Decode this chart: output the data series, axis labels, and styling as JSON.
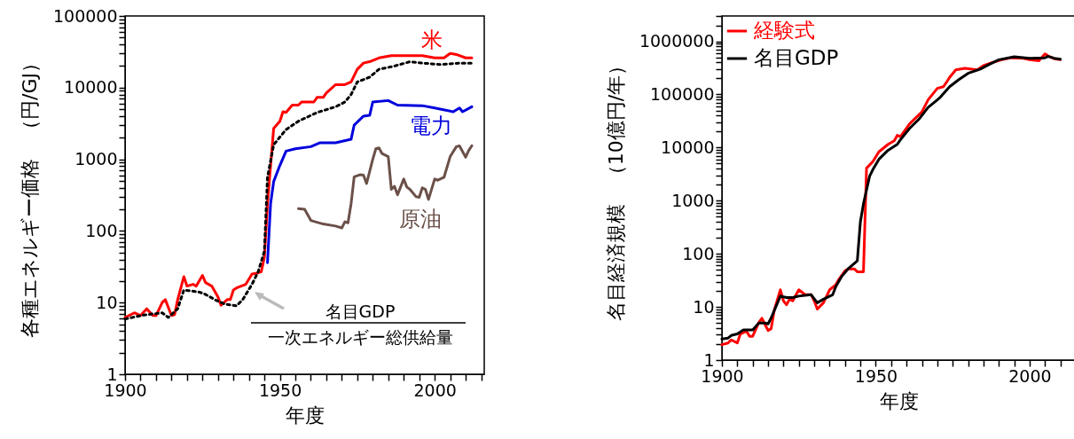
{
  "chart_data": [
    {
      "type": "line",
      "xlabel": "年度",
      "ylabel": "各種エネルギー価格　（円/GJ）",
      "log": "y",
      "legend": false,
      "grid": false,
      "marker": "none",
      "xlim": [
        1900,
        2016
      ],
      "ylim": [
        1,
        100000
      ],
      "xticks": [
        1900,
        {
          "value": 1905,
          "label": null
        },
        {
          "value": 1910,
          "label": null
        },
        {
          "value": 1915,
          "label": null
        },
        {
          "value": 1920,
          "label": null
        },
        {
          "value": 1925,
          "label": null
        },
        {
          "value": 1930,
          "label": null
        },
        {
          "value": 1935,
          "label": null
        },
        {
          "value": 1940,
          "label": null
        },
        {
          "value": 1945,
          "label": null
        },
        1950,
        {
          "value": 1955,
          "label": null
        },
        {
          "value": 1960,
          "label": null
        },
        {
          "value": 1965,
          "label": null
        },
        {
          "value": 1970,
          "label": null
        },
        {
          "value": 1975,
          "label": null
        },
        {
          "value": 1980,
          "label": null
        },
        {
          "value": 1985,
          "label": null
        },
        {
          "value": 1990,
          "label": null
        },
        {
          "value": 1995,
          "label": null
        },
        2000,
        {
          "value": 2005,
          "label": null
        },
        {
          "value": 2010,
          "label": null
        },
        {
          "value": 2015,
          "label": null
        }
      ],
      "yticks": [
        1,
        {
          "value": 2,
          "label": null
        },
        {
          "value": 3,
          "label": null
        },
        {
          "value": 4,
          "label": null
        },
        {
          "value": 5,
          "label": null
        },
        {
          "value": 6,
          "label": null
        },
        {
          "value": 7,
          "label": null
        },
        {
          "value": 8,
          "label": null
        },
        {
          "value": 9,
          "label": null
        },
        10,
        {
          "value": 20,
          "label": null
        },
        {
          "value": 30,
          "label": null
        },
        {
          "value": 40,
          "label": null
        },
        {
          "value": 50,
          "label": null
        },
        {
          "value": 60,
          "label": null
        },
        {
          "value": 70,
          "label": null
        },
        {
          "value": 80,
          "label": null
        },
        {
          "value": 90,
          "label": null
        },
        100,
        {
          "value": 200,
          "label": null
        },
        {
          "value": 300,
          "label": null
        },
        {
          "value": 400,
          "label": null
        },
        {
          "value": 500,
          "label": null
        },
        {
          "value": 600,
          "label": null
        },
        {
          "value": 700,
          "label": null
        },
        {
          "value": 800,
          "label": null
        },
        {
          "value": 900,
          "label": null
        },
        1000,
        {
          "value": 2000,
          "label": null
        },
        {
          "value": 3000,
          "label": null
        },
        {
          "value": 4000,
          "label": null
        },
        {
          "value": 5000,
          "label": null
        },
        {
          "value": 6000,
          "label": null
        },
        {
          "value": 7000,
          "label": null
        },
        {
          "value": 8000,
          "label": null
        },
        {
          "value": 9000,
          "label": null
        },
        10000,
        {
          "value": 20000,
          "label": null
        },
        {
          "value": 30000,
          "label": null
        },
        {
          "value": 40000,
          "label": null
        },
        {
          "value": 50000,
          "label": null
        },
        {
          "value": 60000,
          "label": null
        },
        {
          "value": 70000,
          "label": null
        },
        {
          "value": 80000,
          "label": null
        },
        {
          "value": 90000,
          "label": null
        },
        100000
      ],
      "annotations": [
        "名目GDP",
        "一次エネルギー総供給量"
      ],
      "series": [
        {
          "name": "米",
          "color": "#ff0000",
          "x": [
            1900,
            1903,
            1905,
            1907,
            1909,
            1910,
            1912,
            1913,
            1915,
            1916,
            1917,
            1919,
            1920,
            1922,
            1923,
            1925,
            1926,
            1928,
            1930,
            1931,
            1933,
            1934,
            1935,
            1936,
            1939,
            1941,
            1943,
            1944,
            1945,
            1946,
            1948,
            1950,
            1951,
            1952,
            1954,
            1956,
            1957,
            1961,
            1962,
            1964,
            1965,
            1968,
            1971,
            1973,
            1975,
            1977,
            1979,
            1982,
            1986,
            1991,
            1996,
            2000,
            2003,
            2005,
            2007,
            2010,
            2012
          ],
          "values": [
            6.2,
            7.2,
            6.6,
            8.2,
            6.6,
            6.6,
            10,
            11,
            6.6,
            6.8,
            11,
            23,
            17,
            18,
            17,
            24,
            19,
            17,
            12,
            9.2,
            11,
            11,
            15,
            16,
            18,
            25,
            26,
            27,
            43,
            240,
            2700,
            3400,
            4600,
            4500,
            5700,
            5700,
            6300,
            6300,
            7300,
            7300,
            8400,
            11000,
            11000,
            12000,
            18000,
            22000,
            23000,
            26000,
            28000,
            28000,
            28000,
            26000,
            26000,
            30000,
            29000,
            26000,
            26000
          ]
        },
        {
          "color": "#000000",
          "line_style": "dotted",
          "x": [
            1900,
            1906,
            1912,
            1914,
            1917,
            1919,
            1924,
            1926,
            1929,
            1932,
            1936,
            1938,
            1941,
            1943,
            1945,
            1946,
            1948,
            1952,
            1956,
            1962,
            1968,
            1971,
            1973,
            1975,
            1979,
            1982,
            1987,
            1992,
            1996,
            2002,
            2008,
            2012
          ],
          "values": [
            5.9,
            6.7,
            7.2,
            6.2,
            8.2,
            15,
            14,
            13,
            11,
            9.6,
            9,
            11,
            18,
            27,
            52,
            560,
            1600,
            2600,
            3400,
            4500,
            5400,
            6300,
            8000,
            12000,
            14000,
            18000,
            20000,
            23000,
            22000,
            21000,
            22000,
            22000
          ]
        },
        {
          "name": "電力",
          "color": "#0000dd",
          "x": [
            1946,
            1947,
            1948,
            1950,
            1952,
            1955,
            1960,
            1963,
            1968,
            1973,
            1974,
            1977,
            1979,
            1980,
            1985,
            1988,
            1996,
            2000,
            2006,
            2008,
            2009,
            2012
          ],
          "values": [
            36,
            240,
            490,
            820,
            1300,
            1400,
            1500,
            1700,
            1700,
            1900,
            3000,
            4000,
            4100,
            6300,
            6600,
            5700,
            5600,
            5200,
            4600,
            5200,
            4600,
            5400
          ]
        },
        {
          "name": "原油",
          "color": "#6b5049",
          "x": [
            1956,
            1958,
            1960,
            1964,
            1968,
            1970,
            1971,
            1972,
            1973,
            1974,
            1976,
            1977,
            1978,
            1980,
            1981,
            1982,
            1983,
            1985,
            1986,
            1987,
            1988,
            1990,
            1991,
            1992,
            1994,
            1995,
            1996,
            1997,
            1998,
            2000,
            2001,
            2003,
            2005,
            2007,
            2008,
            2010,
            2011,
            2012
          ],
          "values": [
            205,
            200,
            140,
            125,
            117,
            110,
            134,
            130,
            240,
            570,
            610,
            600,
            460,
            1000,
            1400,
            1440,
            1200,
            1090,
            380,
            420,
            320,
            530,
            410,
            380,
            300,
            295,
            400,
            380,
            275,
            530,
            510,
            560,
            1090,
            1500,
            1540,
            1070,
            1330,
            1550
          ]
        }
      ]
    },
    {
      "type": "line",
      "xlabel": "年度",
      "ylabel": "名目経済規模　（10億円/年）",
      "log": "y",
      "legend": "top left",
      "grid": false,
      "marker": "none",
      "xlim": [
        1900,
        2015
      ],
      "ylim": [
        1,
        3000000
      ],
      "xticks": [
        1900,
        {
          "value": 1905,
          "label": null
        },
        {
          "value": 1910,
          "label": null
        },
        {
          "value": 1915,
          "label": null
        },
        {
          "value": 1920,
          "label": null
        },
        {
          "value": 1925,
          "label": null
        },
        {
          "value": 1930,
          "label": null
        },
        {
          "value": 1935,
          "label": null
        },
        {
          "value": 1940,
          "label": null
        },
        {
          "value": 1945,
          "label": null
        },
        1950,
        {
          "value": 1955,
          "label": null
        },
        {
          "value": 1960,
          "label": null
        },
        {
          "value": 1965,
          "label": null
        },
        {
          "value": 1970,
          "label": null
        },
        {
          "value": 1975,
          "label": null
        },
        {
          "value": 1980,
          "label": null
        },
        {
          "value": 1985,
          "label": null
        },
        {
          "value": 1990,
          "label": null
        },
        {
          "value": 1995,
          "label": null
        },
        2000,
        {
          "value": 2005,
          "label": null
        },
        {
          "value": 2010,
          "label": null
        },
        {
          "value": 2015,
          "label": null
        }
      ],
      "yticks": [
        1,
        {
          "value": 2,
          "label": null
        },
        {
          "value": 3,
          "label": null
        },
        {
          "value": 4,
          "label": null
        },
        {
          "value": 5,
          "label": null
        },
        {
          "value": 6,
          "label": null
        },
        {
          "value": 7,
          "label": null
        },
        {
          "value": 8,
          "label": null
        },
        {
          "value": 9,
          "label": null
        },
        10,
        {
          "value": 20,
          "label": null
        },
        {
          "value": 30,
          "label": null
        },
        {
          "value": 40,
          "label": null
        },
        {
          "value": 50,
          "label": null
        },
        {
          "value": 60,
          "label": null
        },
        {
          "value": 70,
          "label": null
        },
        {
          "value": 80,
          "label": null
        },
        {
          "value": 90,
          "label": null
        },
        100,
        {
          "value": 200,
          "label": null
        },
        {
          "value": 300,
          "label": null
        },
        {
          "value": 400,
          "label": null
        },
        {
          "value": 500,
          "label": null
        },
        {
          "value": 600,
          "label": null
        },
        {
          "value": 700,
          "label": null
        },
        {
          "value": 800,
          "label": null
        },
        {
          "value": 900,
          "label": null
        },
        1000,
        {
          "value": 2000,
          "label": null
        },
        {
          "value": 3000,
          "label": null
        },
        {
          "value": 4000,
          "label": null
        },
        {
          "value": 5000,
          "label": null
        },
        {
          "value": 6000,
          "label": null
        },
        {
          "value": 7000,
          "label": null
        },
        {
          "value": 8000,
          "label": null
        },
        {
          "value": 9000,
          "label": null
        },
        10000,
        {
          "value": 20000,
          "label": null
        },
        {
          "value": 30000,
          "label": null
        },
        {
          "value": 40000,
          "label": null
        },
        {
          "value": 50000,
          "label": null
        },
        {
          "value": 60000,
          "label": null
        },
        {
          "value": 70000,
          "label": null
        },
        {
          "value": 80000,
          "label": null
        },
        {
          "value": 90000,
          "label": null
        },
        100000,
        {
          "value": 200000,
          "label": null
        },
        {
          "value": 300000,
          "label": null
        },
        {
          "value": 400000,
          "label": null
        },
        {
          "value": 500000,
          "label": null
        },
        {
          "value": 600000,
          "label": null
        },
        {
          "value": 700000,
          "label": null
        },
        {
          "value": 800000,
          "label": null
        },
        {
          "value": 900000,
          "label": null
        },
        1000000,
        {
          "value": 2000000,
          "label": null
        },
        {
          "value": 3000000,
          "label": null
        }
      ],
      "series": [
        {
          "name": "経験式",
          "color": "#ff0000",
          "x": [
            1900,
            1902,
            1903,
            1905,
            1906,
            1908,
            1909,
            1910,
            1912,
            1913,
            1915,
            1916,
            1917,
            1919,
            1920,
            1921,
            1922,
            1923,
            1925,
            1927,
            1929,
            1930,
            1931,
            1933,
            1935,
            1937,
            1938,
            1940,
            1941,
            1943,
            1944,
            1946,
            1947,
            1949,
            1951,
            1954,
            1956,
            1957,
            1958,
            1961,
            1965,
            1967,
            1970,
            1972,
            1973,
            1974,
            1976,
            1979,
            1983,
            1985,
            1988,
            1991,
            1994,
            1998,
            2000,
            2003,
            2005,
            2006,
            2008,
            2010
          ],
          "values": [
            1.95,
            2.1,
            2.4,
            2.1,
            3.1,
            3.5,
            2.8,
            2.8,
            5.1,
            6.1,
            3.6,
            3.9,
            8.6,
            21,
            13,
            11,
            14,
            13,
            21,
            17,
            17,
            13,
            9.1,
            12,
            21,
            26,
            33,
            48,
            52,
            52,
            46,
            46,
            4100,
            5400,
            8300,
            11500,
            13400,
            17000,
            16000,
            28000,
            47000,
            79000,
            130000,
            140000,
            170000,
            210000,
            290000,
            310000,
            290000,
            350000,
            400000,
            450000,
            490000,
            480000,
            450000,
            430000,
            580000,
            530000,
            470000,
            450000
          ]
        },
        {
          "name": "名目GDP",
          "color": "#000000",
          "x": [
            1900,
            1902,
            1903,
            1905,
            1907,
            1910,
            1912,
            1914,
            1915,
            1916,
            1919,
            1921,
            1923,
            1925,
            1929,
            1931,
            1933,
            1936,
            1937,
            1939,
            1941,
            1944,
            1945,
            1946,
            1948,
            1949,
            1951,
            1954,
            1957,
            1958,
            1961,
            1964,
            1967,
            1970,
            1971,
            1974,
            1977,
            1980,
            1984,
            1987,
            1990,
            1995,
            2000,
            2005,
            2006,
            2008,
            2010
          ],
          "values": [
            2.5,
            2.6,
            2.9,
            3.1,
            3.7,
            3.7,
            5,
            5,
            4.8,
            6.2,
            16,
            15,
            15,
            16,
            17,
            12,
            14,
            17,
            24,
            38,
            52,
            74,
            400,
            870,
            2900,
            3800,
            6000,
            8900,
            11500,
            14000,
            23000,
            34000,
            57000,
            79000,
            89000,
            140000,
            190000,
            250000,
            300000,
            370000,
            450000,
            510000,
            480000,
            490000,
            520000,
            480000,
            460000
          ]
        }
      ]
    }
  ]
}
